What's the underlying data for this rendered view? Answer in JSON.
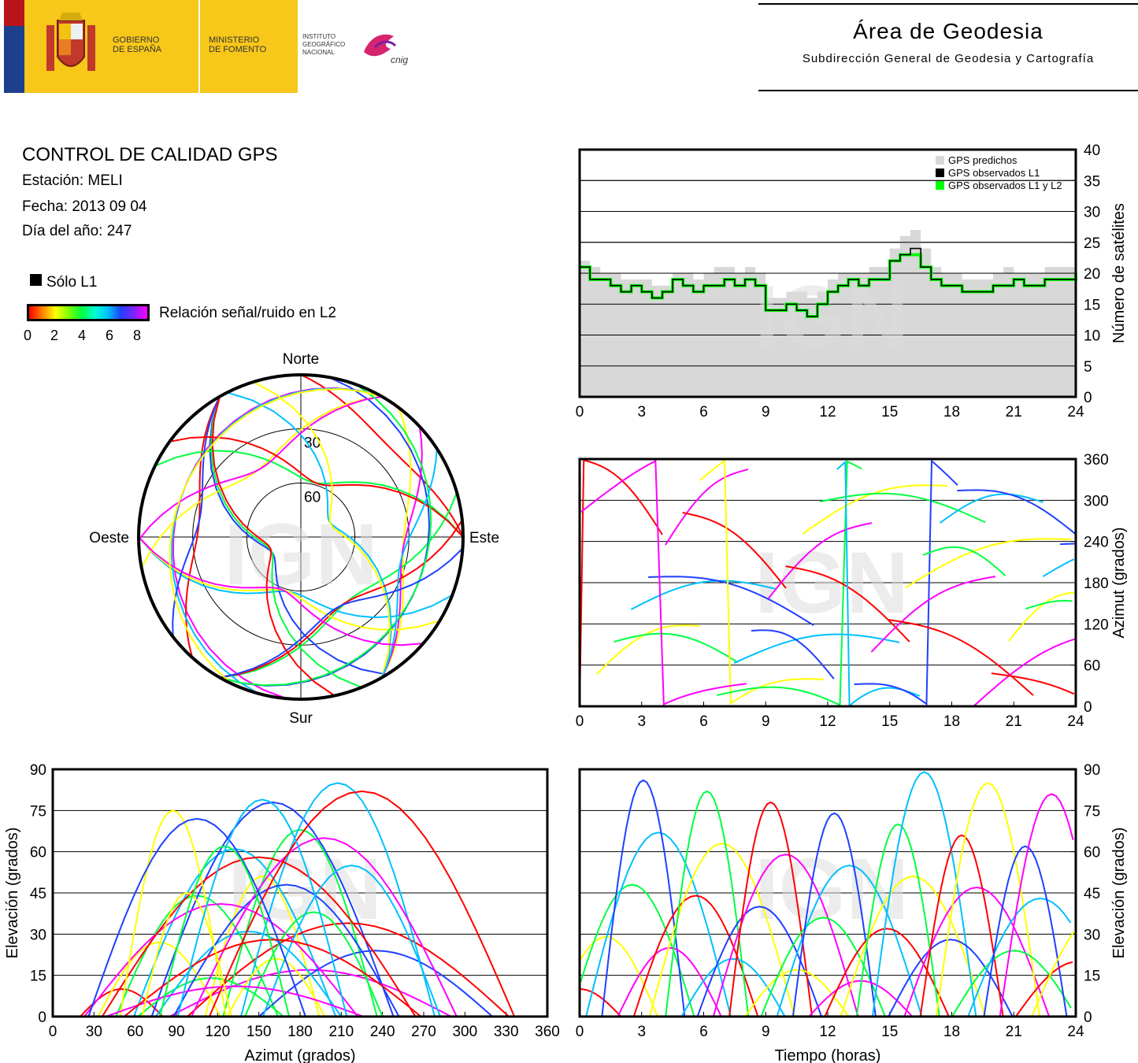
{
  "header": {
    "gov_line1": "GOBIERNO",
    "gov_line2": "DE ESPAÑA",
    "min_line1": "MINISTERIO",
    "min_line2": "DE FOMENTO",
    "ign_line1": "INSTITUTO",
    "ign_line2": "GEOGRÁFICO",
    "ign_line3": "NACIONAL",
    "cnig_logo": "cnig",
    "area_title": "Área de Geodesia",
    "area_subtitle": "Subdirección General de Geodesia y Cartografía"
  },
  "info": {
    "title": "CONTROL DE CALIDAD GPS",
    "station": "Estación: MELI",
    "date": "Fecha: 2013 09 04",
    "doy": "Día del año: 247"
  },
  "legend": {
    "l1_only": "Sólo L1",
    "snr_label": "Relación señal/ruido en L2",
    "snr_ticks": [
      "0",
      "2",
      "4",
      "6",
      "8"
    ],
    "snr_colors": [
      "#ff0000",
      "#ffff00",
      "#00ff40",
      "#00c0ff",
      "#2040ff",
      "#ff00ff"
    ]
  },
  "watermark": "IGN",
  "chart_data": [
    {
      "id": "skyplot",
      "type": "scatter",
      "projection": "polar",
      "labels": {
        "north": "Norte",
        "south": "Sur",
        "east": "Este",
        "west": "Oeste"
      },
      "rings": [
        "30",
        "60"
      ],
      "ring_elevations": [
        30,
        60
      ],
      "note_series": "satellite tracks colored by L2 SNR"
    },
    {
      "id": "satcount",
      "type": "area",
      "ylabel": "Número de satélites",
      "xlim": [
        0,
        24
      ],
      "ylim": [
        0,
        40
      ],
      "xticks": [
        "0",
        "3",
        "6",
        "9",
        "12",
        "15",
        "18",
        "21",
        "24"
      ],
      "yticks": [
        "0",
        "5",
        "10",
        "15",
        "20",
        "25",
        "30",
        "35",
        "40"
      ],
      "grid": true,
      "legend_position": "top-right",
      "series": [
        {
          "name": "GPS predichos",
          "color": "#d8d8d8",
          "x": [
            0,
            0.5,
            1,
            1.5,
            2,
            2.5,
            3,
            3.5,
            4,
            4.5,
            5,
            5.5,
            6,
            6.5,
            7,
            7.5,
            8,
            8.5,
            9,
            9.5,
            10,
            10.5,
            11,
            11.5,
            12,
            12.5,
            13,
            13.5,
            14,
            14.5,
            15,
            15.5,
            16,
            16.5,
            17,
            17.5,
            18,
            18.5,
            19,
            19.5,
            20,
            20.5,
            21,
            21.5,
            22,
            22.5,
            23,
            23.5,
            24
          ],
          "y": [
            22,
            21,
            20,
            20,
            19,
            19,
            19,
            18,
            18,
            20,
            20,
            19,
            20,
            21,
            21,
            20,
            21,
            20,
            16,
            16,
            17,
            17,
            16,
            17,
            19,
            20,
            20,
            20,
            21,
            21,
            24,
            26,
            27,
            24,
            21,
            20,
            20,
            19,
            19,
            19,
            20,
            21,
            20,
            20,
            20,
            21,
            21,
            21,
            21
          ]
        },
        {
          "name": "GPS observados L1",
          "color": "#000000",
          "x": [
            0,
            0.5,
            1,
            1.5,
            2,
            2.5,
            3,
            3.5,
            4,
            4.5,
            5,
            5.5,
            6,
            6.5,
            7,
            7.5,
            8,
            8.5,
            9,
            9.5,
            10,
            10.5,
            11,
            11.5,
            12,
            12.5,
            13,
            13.5,
            14,
            14.5,
            15,
            15.5,
            16,
            16.5,
            17,
            17.5,
            18,
            18.5,
            19,
            19.5,
            20,
            20.5,
            21,
            21.5,
            22,
            22.5,
            23,
            23.5,
            24
          ],
          "y": [
            21,
            19,
            19,
            18,
            17,
            18,
            17,
            16,
            17,
            19,
            18,
            17,
            18,
            18,
            19,
            18,
            19,
            18,
            14,
            14,
            15,
            14,
            13,
            15,
            17,
            18,
            19,
            18,
            19,
            19,
            22,
            23,
            24,
            21,
            19,
            18,
            18,
            17,
            17,
            17,
            18,
            18,
            19,
            18,
            18,
            19,
            19,
            19,
            20
          ]
        },
        {
          "name": "GPS observados L1 y L2",
          "color": "#00ff00",
          "x": [
            0,
            0.5,
            1,
            1.5,
            2,
            2.5,
            3,
            3.5,
            4,
            4.5,
            5,
            5.5,
            6,
            6.5,
            7,
            7.5,
            8,
            8.5,
            9,
            9.5,
            10,
            10.5,
            11,
            11.5,
            12,
            12.5,
            13,
            13.5,
            14,
            14.5,
            15,
            15.5,
            16,
            16.5,
            17,
            17.5,
            18,
            18.5,
            19,
            19.5,
            20,
            20.5,
            21,
            21.5,
            22,
            22.5,
            23,
            23.5,
            24
          ],
          "y": [
            21,
            19,
            19,
            18,
            17,
            18,
            17,
            16,
            17,
            19,
            18,
            17,
            18,
            18,
            19,
            18,
            19,
            18,
            14,
            14,
            15,
            14,
            13,
            15,
            17,
            18,
            19,
            18,
            19,
            19,
            22,
            23,
            23,
            21,
            19,
            18,
            18,
            17,
            17,
            17,
            18,
            18,
            19,
            18,
            18,
            19,
            19,
            19,
            20
          ]
        }
      ]
    },
    {
      "id": "azimuth_time",
      "type": "scatter",
      "ylabel": "Azimut (grados)",
      "xlim": [
        0,
        24
      ],
      "ylim": [
        0,
        360
      ],
      "xticks": [
        "0",
        "3",
        "6",
        "9",
        "12",
        "15",
        "18",
        "21",
        "24"
      ],
      "yticks": [
        "0",
        "60",
        "120",
        "180",
        "240",
        "300",
        "360"
      ],
      "grid": true,
      "note_series": "satellite azimuth tracks colored by L2 SNR"
    },
    {
      "id": "elev_azimuth",
      "type": "scatter",
      "xlabel": "Azimut (grados)",
      "ylabel": "Elevación (grados)",
      "xlim": [
        0,
        360
      ],
      "ylim": [
        0,
        90
      ],
      "xticks": [
        "0",
        "30",
        "60",
        "90",
        "120",
        "150",
        "180",
        "210",
        "240",
        "270",
        "300",
        "330",
        "360"
      ],
      "yticks": [
        "0",
        "15",
        "30",
        "45",
        "60",
        "75",
        "90"
      ],
      "grid": true,
      "note_series": "elevation vs azimuth tracks colored by L2 SNR"
    },
    {
      "id": "elev_time",
      "type": "scatter",
      "xlabel": "Tiempo (horas)",
      "ylabel": "Elevación (grados)",
      "xlim": [
        0,
        24
      ],
      "ylim": [
        0,
        90
      ],
      "xticks": [
        "0",
        "3",
        "6",
        "9",
        "12",
        "15",
        "18",
        "21",
        "24"
      ],
      "yticks": [
        "0",
        "15",
        "30",
        "45",
        "60",
        "75",
        "90"
      ],
      "grid": true,
      "note_series": "elevation vs time tracks colored by L2 SNR"
    }
  ]
}
